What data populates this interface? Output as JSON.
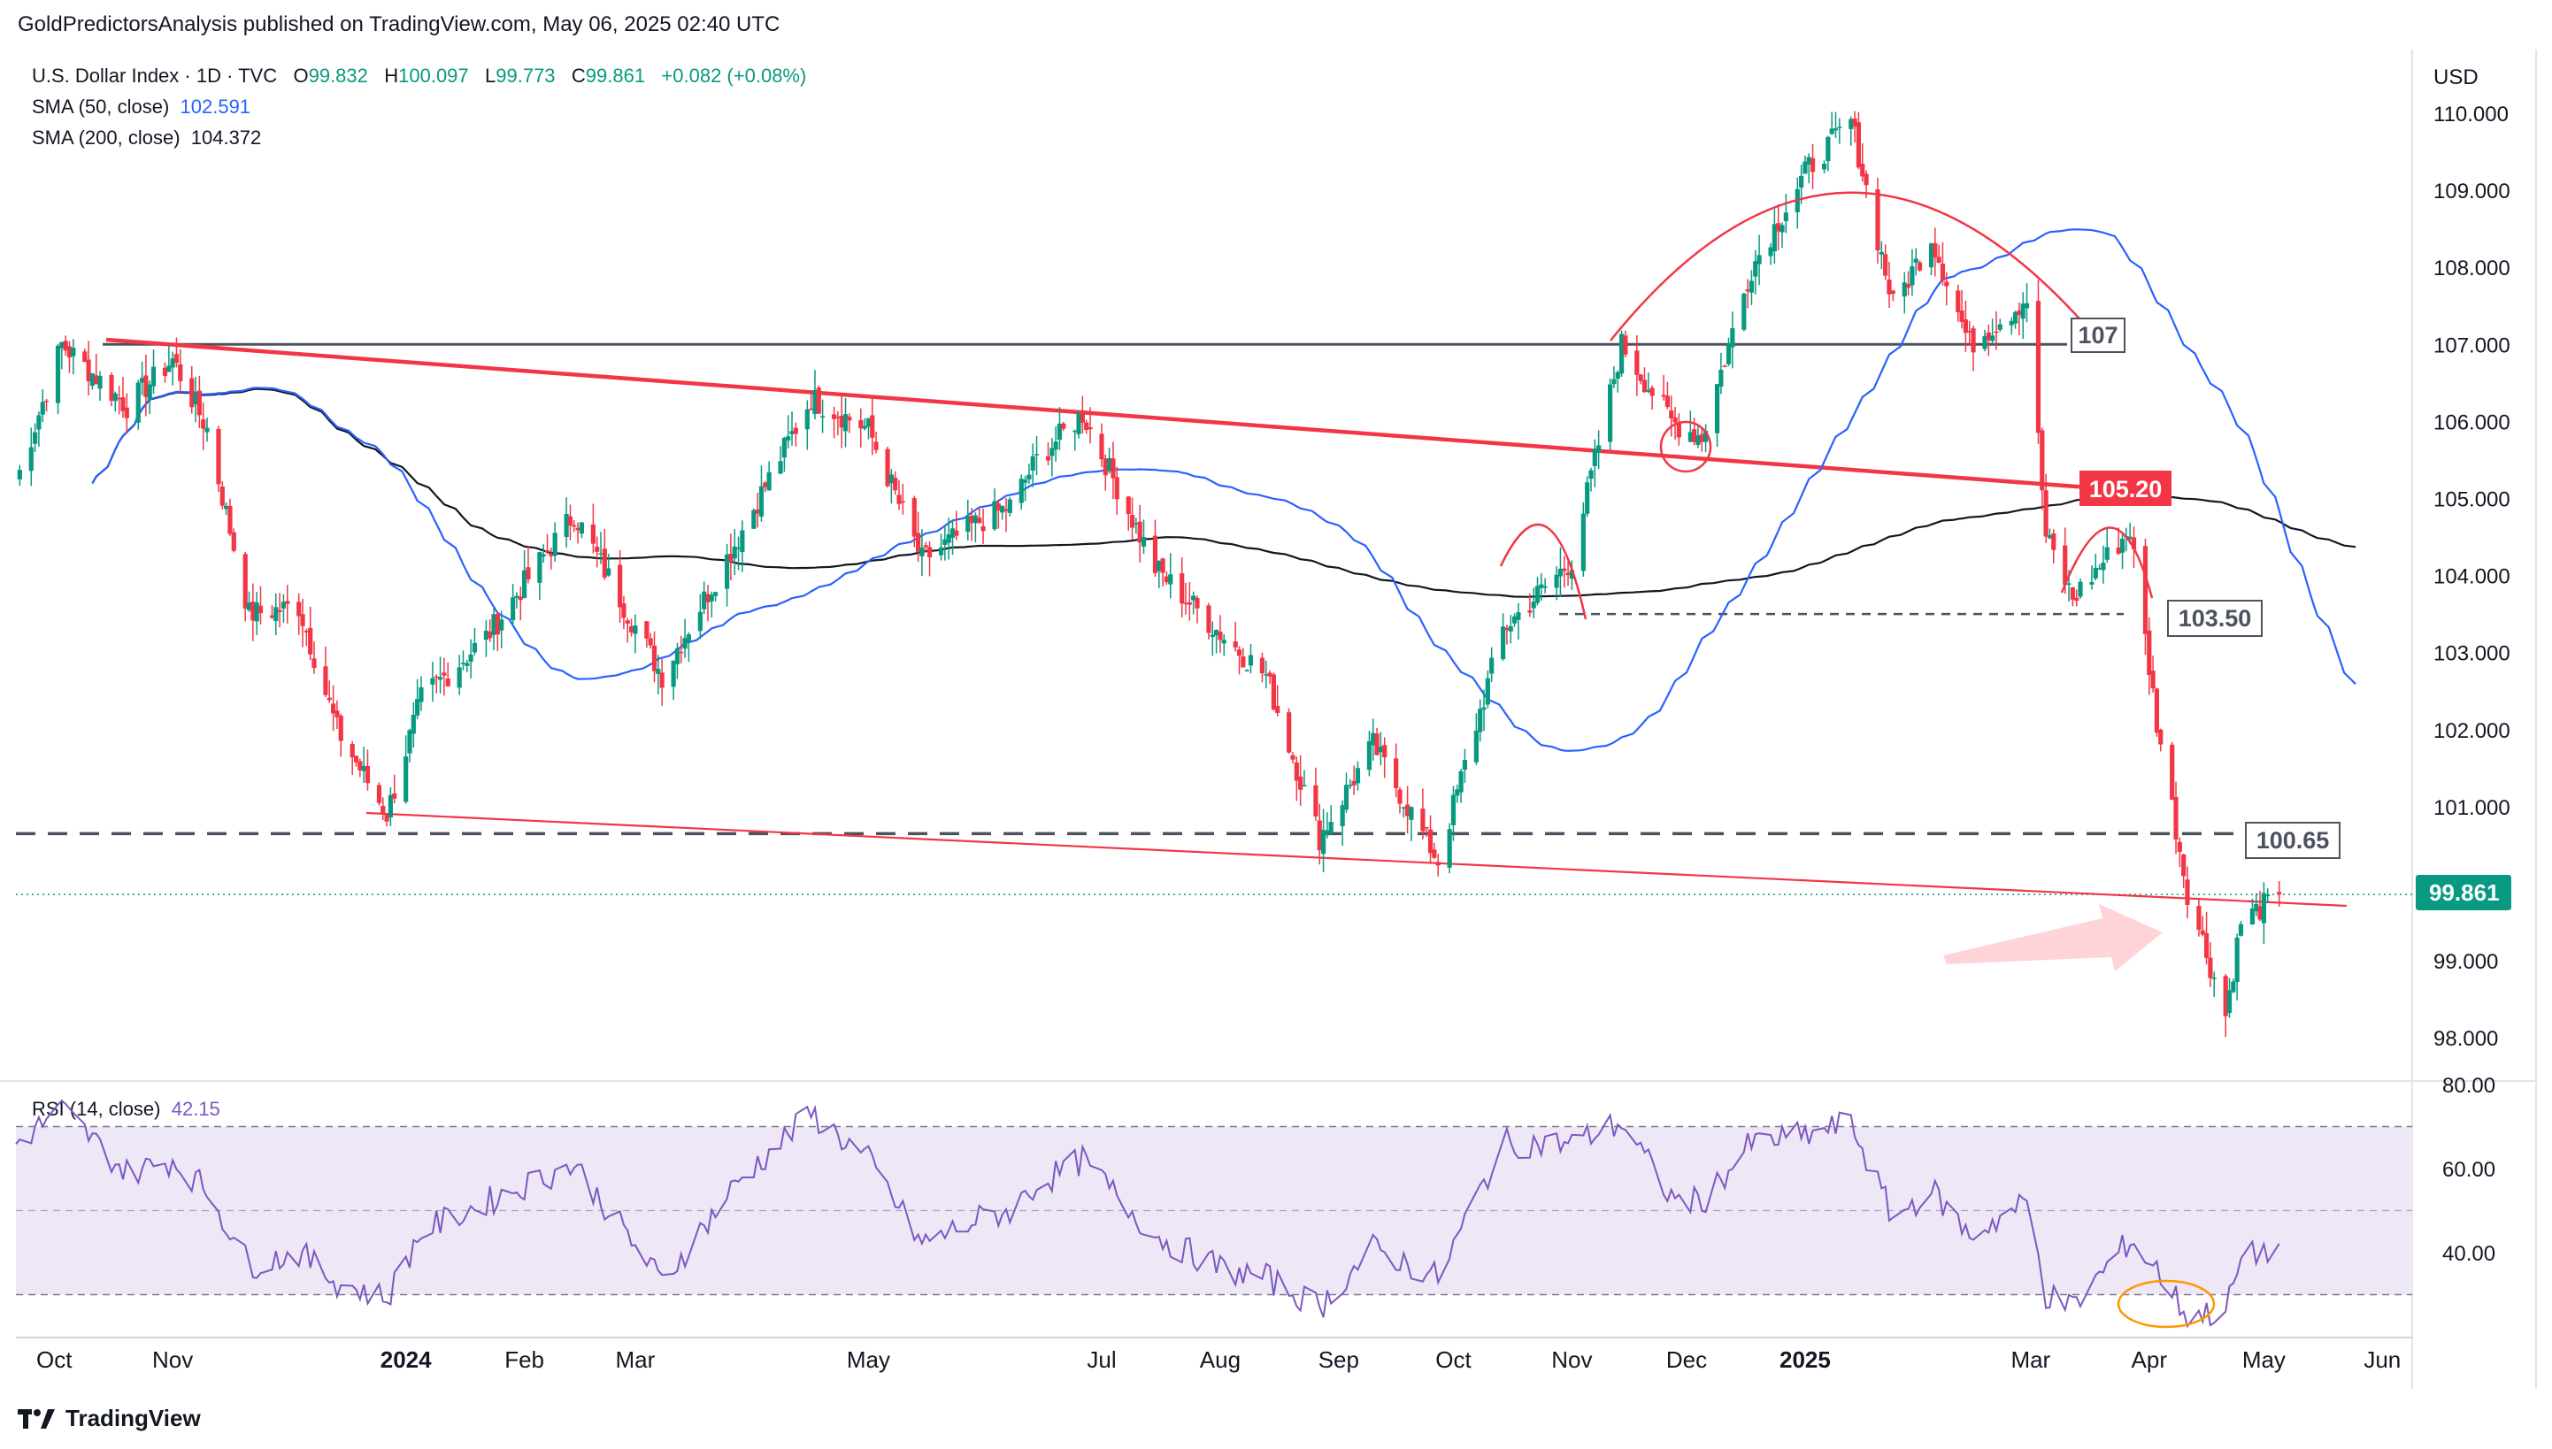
{
  "header": {
    "text": "GoldPredictorsAnalysis published on TradingView.com, May 06, 2025 02:40 UTC"
  },
  "legend": {
    "symbol": "U.S. Dollar Index · 1D · TVC",
    "o_label": "O",
    "o": "99.832",
    "h_label": "H",
    "h": "100.097",
    "l_label": "L",
    "l": "99.773",
    "c_label": "C",
    "c": "99.861",
    "change": "+0.082 (+0.08%)",
    "sma50_label": "SMA (50, close)",
    "sma50": "102.591",
    "sma200_label": "SMA (200, close)",
    "sma200": "104.372"
  },
  "rsi_legend": {
    "label": "RSI (14, close)",
    "value": "42.15"
  },
  "currency": "USD",
  "footer": {
    "brand": "TradingView"
  },
  "colors": {
    "up": "#089981",
    "down": "#f23645",
    "sma50": "#2962ff",
    "sma200": "#131722",
    "rsi": "#7e57c2",
    "rsi_band": "#ede7f6",
    "trend_red": "#f23645",
    "price_badge": "#089981"
  },
  "chart_data": [
    {
      "type": "candlestick",
      "title": "U.S. Dollar Index · 1D · TVC",
      "y_axis": {
        "unit": "USD",
        "ticks": [
          "110.000",
          "109.000",
          "108.000",
          "107.000",
          "106.000",
          "105.000",
          "104.000",
          "103.000",
          "102.000",
          "101.000",
          "100.000",
          "99.000",
          "98.000"
        ],
        "range": [
          97.5,
          110.3
        ]
      },
      "x_axis": {
        "ticks": [
          "Oct",
          "Nov",
          "2024",
          "Feb",
          "Mar",
          "May",
          "Jul",
          "Aug",
          "Sep",
          "Oct",
          "Nov",
          "Dec",
          "2025",
          "Mar",
          "Apr",
          "May",
          "Jun"
        ],
        "bold_ticks": [
          "2024",
          "2025"
        ],
        "range": [
          "2023-09-21",
          "2025-06-25"
        ]
      },
      "last_price": "99.861",
      "sma_50_last": 102.591,
      "sma_200_last": 104.372,
      "close_path": [
        [
          "2023-09-21",
          105.2
        ],
        [
          "2023-10-03",
          107.0
        ],
        [
          "2023-10-20",
          106.2
        ],
        [
          "2023-11-01",
          106.8
        ],
        [
          "2023-11-10",
          105.9
        ],
        [
          "2023-11-21",
          103.5
        ],
        [
          "2023-12-04",
          103.6
        ],
        [
          "2023-12-14",
          102.0
        ],
        [
          "2023-12-27",
          100.9
        ],
        [
          "2024-01-05",
          102.4
        ],
        [
          "2024-01-22",
          103.2
        ],
        [
          "2024-02-14",
          104.8
        ],
        [
          "2024-03-08",
          102.7
        ],
        [
          "2024-03-28",
          104.5
        ],
        [
          "2024-04-16",
          106.3
        ],
        [
          "2024-05-01",
          105.9
        ],
        [
          "2024-05-15",
          104.2
        ],
        [
          "2024-05-30",
          104.7
        ],
        [
          "2024-06-07",
          104.9
        ],
        [
          "2024-06-14",
          105.5
        ],
        [
          "2024-06-26",
          106.1
        ],
        [
          "2024-07-15",
          104.1
        ],
        [
          "2024-08-02",
          103.2
        ],
        [
          "2024-08-13",
          102.7
        ],
        [
          "2024-08-27",
          100.6
        ],
        [
          "2024-09-10",
          101.8
        ],
        [
          "2024-09-27",
          100.3
        ],
        [
          "2024-10-14",
          103.3
        ],
        [
          "2024-11-01",
          104.2
        ],
        [
          "2024-11-14",
          107.0
        ],
        [
          "2024-11-27",
          106.0
        ],
        [
          "2024-12-05",
          105.8
        ],
        [
          "2024-12-18",
          108.0
        ],
        [
          "2025-01-02",
          109.3
        ],
        [
          "2025-01-13",
          109.9
        ],
        [
          "2025-01-24",
          107.5
        ],
        [
          "2025-02-03",
          108.4
        ],
        [
          "2025-02-13",
          107.0
        ],
        [
          "2025-02-28",
          107.6
        ],
        [
          "2025-03-05",
          104.5
        ],
        [
          "2025-03-12",
          103.7
        ],
        [
          "2025-03-27",
          104.6
        ],
        [
          "2025-04-03",
          102.1
        ],
        [
          "2025-04-11",
          99.9
        ],
        [
          "2025-04-21",
          98.3
        ],
        [
          "2025-04-25",
          99.5
        ],
        [
          "2025-05-05",
          99.861
        ]
      ],
      "horizontal_levels": [
        {
          "label": "107",
          "value": 107.0,
          "style": "solid"
        },
        {
          "label": "103.50",
          "value": 103.5,
          "style": "dashed"
        },
        {
          "label": "100.65",
          "value": 100.65,
          "style": "dashed"
        }
      ],
      "trendline_label": "105.20",
      "annotations": [
        "rounded top",
        "head-and-shoulders shoulders",
        "pink arrow to lower trendline",
        "circle at Dec low"
      ]
    },
    {
      "type": "line",
      "title": "RSI (14, close)",
      "last_value": 42.15,
      "y_axis": {
        "ticks": [
          "80.00",
          "60.00",
          "40.00"
        ],
        "range": [
          18,
          82
        ]
      },
      "bands": {
        "upper": 70,
        "middle": 50,
        "lower": 30
      },
      "values": [
        [
          "2023-09-21",
          66
        ],
        [
          "2023-10-03",
          74
        ],
        [
          "2023-10-20",
          59
        ],
        [
          "2023-11-01",
          62
        ],
        [
          "2023-11-10",
          55
        ],
        [
          "2023-11-21",
          37
        ],
        [
          "2023-12-04",
          40
        ],
        [
          "2023-12-14",
          33
        ],
        [
          "2023-12-27",
          29
        ],
        [
          "2024-01-05",
          45
        ],
        [
          "2024-01-22",
          52
        ],
        [
          "2024-02-14",
          61
        ],
        [
          "2024-03-08",
          33
        ],
        [
          "2024-03-28",
          57
        ],
        [
          "2024-04-16",
          73
        ],
        [
          "2024-05-01",
          62
        ],
        [
          "2024-05-15",
          42
        ],
        [
          "2024-05-30",
          48
        ],
        [
          "2024-06-07",
          50
        ],
        [
          "2024-06-14",
          56
        ],
        [
          "2024-06-26",
          62
        ],
        [
          "2024-07-15",
          44
        ],
        [
          "2024-08-02",
          36
        ],
        [
          "2024-08-13",
          34
        ],
        [
          "2024-08-27",
          27
        ],
        [
          "2024-09-10",
          41
        ],
        [
          "2024-09-27",
          34
        ],
        [
          "2024-10-14",
          66
        ],
        [
          "2024-11-01",
          66
        ],
        [
          "2024-11-14",
          71
        ],
        [
          "2024-11-27",
          53
        ],
        [
          "2024-12-05",
          52
        ],
        [
          "2024-12-18",
          66
        ],
        [
          "2025-01-02",
          68
        ],
        [
          "2025-01-13",
          71
        ],
        [
          "2025-01-24",
          48
        ],
        [
          "2025-02-03",
          55
        ],
        [
          "2025-02-13",
          44
        ],
        [
          "2025-02-28",
          52
        ],
        [
          "2025-03-05",
          30
        ],
        [
          "2025-03-12",
          27
        ],
        [
          "2025-03-27",
          43
        ],
        [
          "2025-04-03",
          36
        ],
        [
          "2025-04-11",
          25
        ],
        [
          "2025-04-21",
          26
        ],
        [
          "2025-04-25",
          38
        ],
        [
          "2025-05-05",
          42.15
        ]
      ]
    }
  ]
}
